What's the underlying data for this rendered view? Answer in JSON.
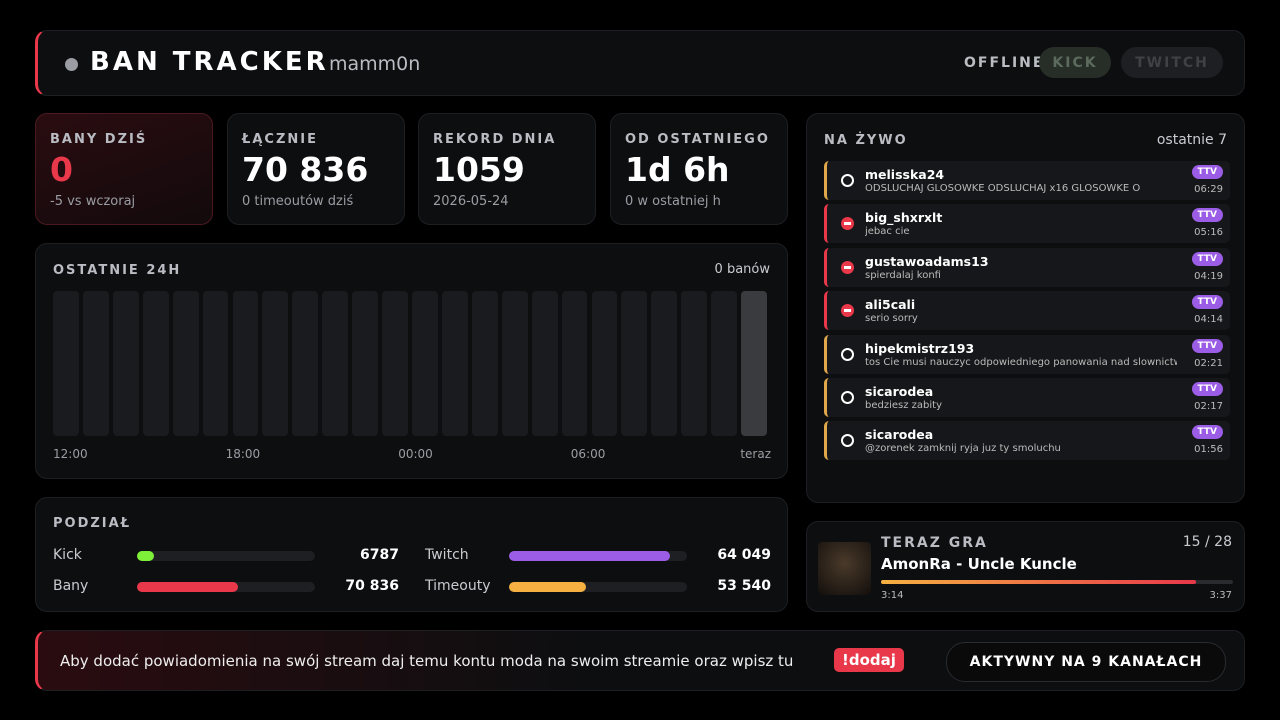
{
  "header": {
    "title": "BAN TRACKER",
    "channel": "mamm0n",
    "status": "OFFLINE",
    "platforms": [
      "KICK",
      "TWITCH"
    ]
  },
  "stats": [
    {
      "label": "BANY DZIŚ",
      "value": "0",
      "sub": "-5 vs wczoraj"
    },
    {
      "label": "ŁĄCZNIE",
      "value": "70 836",
      "sub": "0 timeoutów dziś"
    },
    {
      "label": "REKORD DNIA",
      "value": "1059",
      "sub": "2026-05-24"
    },
    {
      "label": "OD OSTATNIEGO",
      "value": "1d 6h",
      "sub": "0 w ostatniej h"
    }
  ],
  "recent": {
    "title": "OSTATNIE 24H",
    "summary": "0 banów",
    "hours": [
      0,
      0,
      0,
      0,
      0,
      0,
      0,
      0,
      0,
      0,
      0,
      0,
      0,
      0,
      0,
      0,
      0,
      0,
      0,
      0,
      0,
      0,
      0,
      0
    ],
    "time_labels": [
      "12:00",
      "18:00",
      "00:00",
      "06:00",
      "teraz"
    ]
  },
  "split": {
    "title": "PODZIAŁ",
    "rows": [
      {
        "name": "Kick",
        "value": 6787,
        "value_label": "6787",
        "color": "#7ef03a"
      },
      {
        "name": "Twitch",
        "value": 64049,
        "value_label": "64 049",
        "color": "#9b5de5"
      },
      {
        "name": "Bany",
        "value": 70836,
        "value_label": "70 836",
        "color": "#e8384a"
      },
      {
        "name": "Timeouty",
        "value": 53540,
        "value_label": "53 540",
        "color": "#f5b041"
      }
    ]
  },
  "live": {
    "title": "NA ŻYWO",
    "count_label": "ostatnie 7",
    "items": [
      {
        "user": "melisska24",
        "message": "ODSLUCHAJ GLOSOWKE ODSLUCHAJ x16 GLOSOWKE O",
        "platform": "TTV",
        "time": "06:29",
        "kind": "timeout"
      },
      {
        "user": "big_shxrxlt",
        "message": "jebac cie",
        "platform": "TTV",
        "time": "05:16",
        "kind": "ban"
      },
      {
        "user": "gustawoadams13",
        "message": "spierdalaj konfi",
        "platform": "TTV",
        "time": "04:19",
        "kind": "ban"
      },
      {
        "user": "ali5cali",
        "message": "serio sorry",
        "platform": "TTV",
        "time": "04:14",
        "kind": "ban"
      },
      {
        "user": "hipekmistrz193",
        "message": "tos Cie musi nauczyc odpowiedniego panowania nad slownictwem",
        "platform": "TTV",
        "time": "02:21",
        "kind": "timeout"
      },
      {
        "user": "sicarodea",
        "message": "bedziesz zabity",
        "platform": "TTV",
        "time": "02:17",
        "kind": "timeout"
      },
      {
        "user": "sicarodea",
        "message": "@zorenek zamknij ryja juz ty smoluchu",
        "platform": "TTV",
        "time": "01:56",
        "kind": "timeout"
      }
    ]
  },
  "now_playing": {
    "title": "TERAZ GRA",
    "position": "15 / 28",
    "song": "AmonRa - Uncle Kuncle",
    "elapsed": "3:14",
    "duration": "3:37"
  },
  "footer": {
    "message": "Aby dodać powiadomienia na swój stream daj temu kontu moda na swoim streamie oraz wpisz tu",
    "command": "!dodaj",
    "status": "AKTYWNY NA 9 KANAŁACH"
  }
}
